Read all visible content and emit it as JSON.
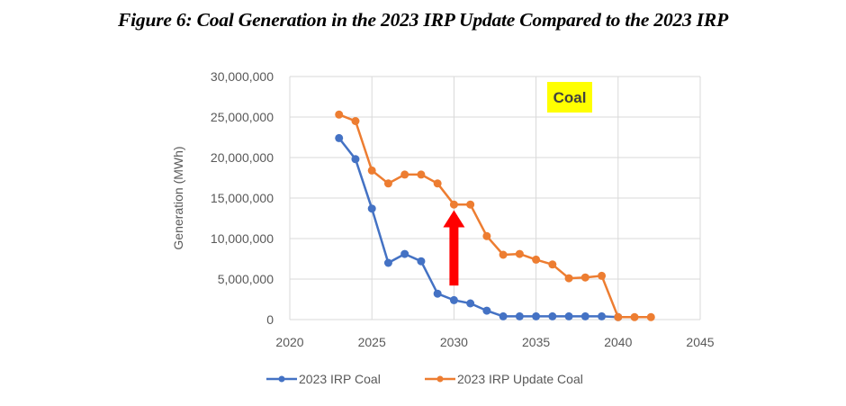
{
  "figure": {
    "title": "Figure 6: Coal Generation in the 2023 IRP Update Compared to the 2023 IRP"
  },
  "chart_data": {
    "type": "scatter",
    "title": "Figure 6: Coal Generation in the 2023 IRP Update Compared to the 2023 IRP",
    "xlabel": "",
    "ylabel": "Generation (MWh)",
    "xlim": [
      2020,
      2045
    ],
    "ylim": [
      0,
      30000000
    ],
    "x_ticks": [
      2020,
      2025,
      2030,
      2035,
      2040,
      2045
    ],
    "x_tick_labels": [
      "2020",
      "2025",
      "2030",
      "2035",
      "2040",
      "2045"
    ],
    "y_ticks": [
      0,
      5000000,
      10000000,
      15000000,
      20000000,
      25000000,
      30000000
    ],
    "y_tick_labels": [
      "0",
      "5,000,000",
      "10,000,000",
      "15,000,000",
      "20,000,000",
      "25,000,000",
      "30,000,000"
    ],
    "grid": true,
    "legend_position": "bottom",
    "annotation": {
      "text": "Coal",
      "highlight_color": "#FFFF00",
      "location": "top-right"
    },
    "arrow": {
      "color": "#FF0000",
      "x": 2030,
      "from_y": 4200000,
      "to_y": 13500000,
      "direction": "up"
    },
    "series": [
      {
        "name": "2023 IRP Coal",
        "color": "#4472C4",
        "mode": "lines+markers",
        "x": [
          2023,
          2024,
          2025,
          2026,
          2027,
          2028,
          2029,
          2030,
          2031,
          2032,
          2033,
          2034,
          2035,
          2036,
          2037,
          2038,
          2039,
          2040
        ],
        "y": [
          22400000,
          19800000,
          13700000,
          7000000,
          8100000,
          7200000,
          3200000,
          2400000,
          2000000,
          1100000,
          400000,
          400000,
          400000,
          400000,
          400000,
          400000,
          400000,
          300000
        ]
      },
      {
        "name": "2023 IRP Update Coal",
        "color": "#ED7D31",
        "mode": "lines+markers",
        "x": [
          2023,
          2024,
          2025,
          2026,
          2027,
          2028,
          2029,
          2030,
          2031,
          2032,
          2033,
          2034,
          2035,
          2036,
          2037,
          2038,
          2039,
          2040,
          2041,
          2042
        ],
        "y": [
          25300000,
          24500000,
          18400000,
          16800000,
          17900000,
          17900000,
          16800000,
          14200000,
          14200000,
          10300000,
          8000000,
          8100000,
          7400000,
          6800000,
          5100000,
          5200000,
          5400000,
          300000,
          300000,
          300000
        ]
      }
    ]
  }
}
